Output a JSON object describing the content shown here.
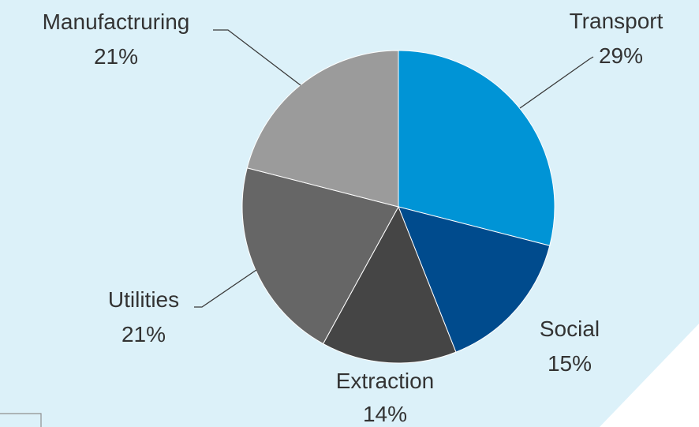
{
  "colors": {
    "backdrop": "#dcf1f9",
    "slide": "#ffffff",
    "slice_edge": "#ffffff"
  },
  "chart_data": {
    "type": "pie",
    "start": "12 o'clock, clockwise",
    "slices": [
      {
        "label": "Transport",
        "value": 29,
        "display": "29%",
        "color": "#0094d6"
      },
      {
        "label": "Social",
        "value": 15,
        "display": "15%",
        "color": "#004b8d"
      },
      {
        "label": "Extraction",
        "value": 14,
        "display": "14%",
        "color": "#454545"
      },
      {
        "label": "Utilities",
        "value": 21,
        "display": "21%",
        "color": "#666666"
      },
      {
        "label": "Manufactruring",
        "value": 21,
        "display": "21%",
        "color": "#9b9b9b"
      }
    ]
  }
}
